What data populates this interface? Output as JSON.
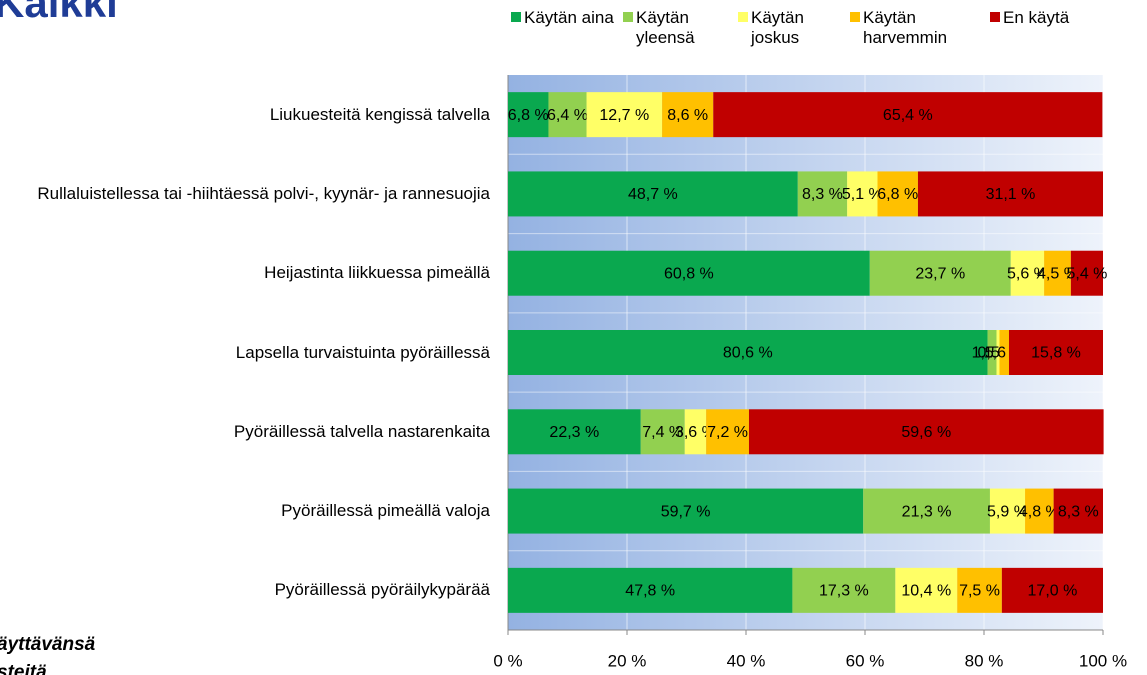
{
  "chart_data": {
    "type": "bar",
    "orientation": "horizontal",
    "stacked": true,
    "title": "Kaikki",
    "annotations": [
      "äyttävänsä",
      "steitä"
    ],
    "categories": [
      "Liukuesteitä kengissä talvella",
      "Rullaluistellessa tai -hiihtäessä polvi-, kyynär- ja rannesuojia",
      "Heijastinta liikkuessa pimeällä",
      "Lapsella turvaistuinta pyöräillessä",
      "Pyöräillessä talvella nastarenkaita",
      "Pyöräillessä pimeällä valoja",
      "Pyöräillessä pyöräilykypärää"
    ],
    "series": [
      {
        "name": "Käytän aina",
        "color": "#0aa84f",
        "values": [
          6.8,
          48.7,
          60.8,
          80.6,
          22.3,
          59.7,
          47.8
        ],
        "value_labels": [
          "6,8 %",
          "48,7 %",
          "60,8 %",
          "80,6 %",
          "22,3 %",
          "59,7 %",
          "47,8 %"
        ]
      },
      {
        "name": "Käytän yleensä",
        "color": "#92d050",
        "values": [
          6.4,
          8.3,
          23.7,
          1.5,
          7.4,
          21.3,
          17.3
        ],
        "value_labels": [
          "6,4 %",
          "8,3 %",
          "23,7 %",
          "1,5 %",
          "7,4 %",
          "21,3 %",
          "17,3 %"
        ]
      },
      {
        "name": "Käytän joskus",
        "color": "#ffff66",
        "values": [
          12.7,
          5.1,
          5.6,
          0.5,
          3.6,
          5.9,
          10.4
        ],
        "value_labels": [
          "12,7 %",
          "5,1 %",
          "5,6 %",
          "0,5 %",
          "3,6 %",
          "5,9 %",
          "10,4 %"
        ]
      },
      {
        "name": "Käytän harvemmin",
        "color": "#ffc000",
        "values": [
          8.6,
          6.8,
          4.5,
          1.6,
          7.2,
          4.8,
          7.5
        ],
        "value_labels": [
          "8,6 %",
          "6,8 %",
          "4,5 %",
          "1,6 %",
          "7,2 %",
          "4,8 %",
          "7,5 %"
        ]
      },
      {
        "name": "En käytä",
        "color": "#c00000",
        "values": [
          65.4,
          31.1,
          5.4,
          15.8,
          59.6,
          8.3,
          17.0
        ],
        "value_labels": [
          "65,4 %",
          "31,1 %",
          "5,4 %",
          "15,8 %",
          "59,6 %",
          "8,3 %",
          "17,0 %"
        ]
      }
    ],
    "xlim": [
      0,
      100
    ],
    "xticks": [
      {
        "value": 0,
        "label": "0 %"
      },
      {
        "value": 20,
        "label": "20 %"
      },
      {
        "value": 40,
        "label": "40 %"
      },
      {
        "value": 60,
        "label": "60 %"
      },
      {
        "value": 80,
        "label": "80 %"
      },
      {
        "value": 100,
        "label": "100 %"
      }
    ],
    "grid": true
  }
}
